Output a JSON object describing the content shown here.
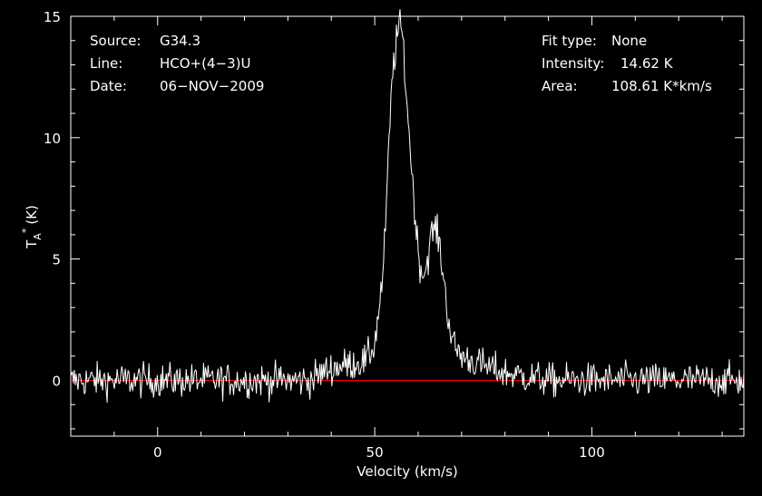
{
  "chart_data": {
    "type": "line",
    "annotations_left": [
      {
        "key": "Source:",
        "value": "G34.3"
      },
      {
        "key": "Line:",
        "value": "HCO+(4−3)U"
      },
      {
        "key": "Date:",
        "value": "06−NOV−2009"
      }
    ],
    "annotations_right": [
      {
        "key": "Fit type:",
        "value": "None"
      },
      {
        "key": "Intensity:",
        "value": "14.62 K"
      },
      {
        "key": "Area:",
        "value": "108.61 K*km/s"
      }
    ],
    "xlabel": "Velocity (km/s)",
    "ylabel": "T",
    "ylabel_sub": "A",
    "ylabel_sup": "*",
    "ylabel_unit": "(K)",
    "xlim": [
      -20,
      135
    ],
    "ylim": [
      -2.3,
      15
    ],
    "xticks": [
      0,
      50,
      100
    ],
    "yticks": [
      0,
      5,
      10,
      15
    ],
    "baseline": 0,
    "baseline_color": "#ff0000",
    "line_color": "#ffffff",
    "background": "#000000",
    "series": [
      {
        "x": [
          -20,
          -5,
          10,
          25,
          35,
          40,
          45,
          48,
          50,
          52,
          53,
          54,
          55,
          55.5,
          56,
          56.5,
          57,
          58,
          59,
          60,
          61,
          62,
          63,
          64,
          65,
          66,
          67,
          68,
          70,
          75,
          80,
          90,
          100,
          110,
          120,
          135
        ],
        "values": [
          0,
          0,
          0,
          0,
          0,
          0.5,
          0.7,
          0.8,
          1.5,
          4.5,
          8.5,
          12.5,
          14.0,
          14.5,
          14.6,
          14.0,
          12.5,
          10.0,
          7.5,
          5.3,
          4.3,
          4.8,
          6.0,
          6.3,
          5.5,
          4.0,
          2.5,
          1.5,
          1.0,
          0.6,
          0.3,
          0,
          0,
          0,
          0,
          0
        ]
      }
    ],
    "noise_rms": 0.5
  }
}
